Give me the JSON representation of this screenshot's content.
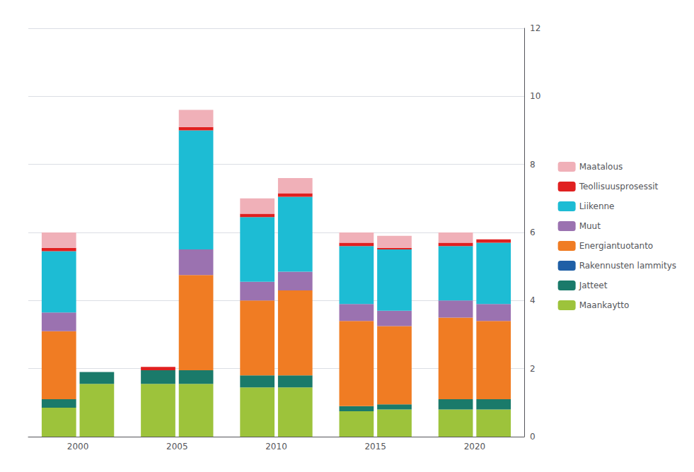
{
  "chart_data": {
    "type": "bar",
    "stacked": true,
    "categories": [
      "2000",
      "2005",
      "2010",
      "2015",
      "2020"
    ],
    "series": [
      {
        "name": "Maankaytto",
        "color": "#9dc33b",
        "values": [
          0.85,
          1.55,
          1.45,
          0.75,
          0.8
        ],
        "values_2": [
          1.55,
          1.55,
          1.45,
          0.8,
          0.8
        ]
      },
      {
        "name": "Jatteet",
        "color": "#1a7a6a",
        "values": [
          0.25,
          0.4,
          0.35,
          0.15,
          0.3
        ],
        "values_2": [
          0.35,
          0.4,
          0.35,
          0.15,
          0.3
        ]
      },
      {
        "name": "Rakennusten lammitys",
        "color": "#1f5fa6",
        "values": [
          0.0,
          0.0,
          0.0,
          0.0,
          0.0
        ],
        "values_2": [
          0.0,
          0.0,
          0.0,
          0.0,
          0.0
        ]
      },
      {
        "name": "Energiantuotanto",
        "color": "#f07c23",
        "values": [
          2.0,
          0.0,
          2.2,
          2.5,
          2.4
        ],
        "values_2": [
          0.0,
          2.8,
          2.5,
          2.3,
          2.3
        ]
      },
      {
        "name": "Muut",
        "color": "#9b72b0",
        "values": [
          0.55,
          0.0,
          0.55,
          0.5,
          0.5
        ],
        "values_2": [
          0.0,
          0.75,
          0.55,
          0.45,
          0.5
        ]
      },
      {
        "name": "Liikenne",
        "color": "#1dbcd4",
        "values": [
          1.8,
          0.0,
          1.9,
          1.7,
          1.6
        ],
        "values_2": [
          0.0,
          3.5,
          2.2,
          1.8,
          1.8
        ]
      },
      {
        "name": "Teollisuusprosessit",
        "color": "#e02020",
        "values": [
          0.1,
          0.1,
          0.1,
          0.1,
          0.1
        ],
        "values_2": [
          0.0,
          0.1,
          0.1,
          0.05,
          0.1
        ]
      },
      {
        "name": "Maatalous",
        "color": "#f0b0b8",
        "values": [
          0.45,
          0.0,
          0.45,
          0.3,
          0.3
        ],
        "values_2": [
          0.0,
          0.5,
          0.45,
          0.35,
          0.0
        ]
      }
    ],
    "ylim": [
      0,
      12
    ],
    "yticks": [
      0,
      2,
      4,
      6,
      8,
      10,
      12
    ],
    "grid": true,
    "legend": "right"
  }
}
